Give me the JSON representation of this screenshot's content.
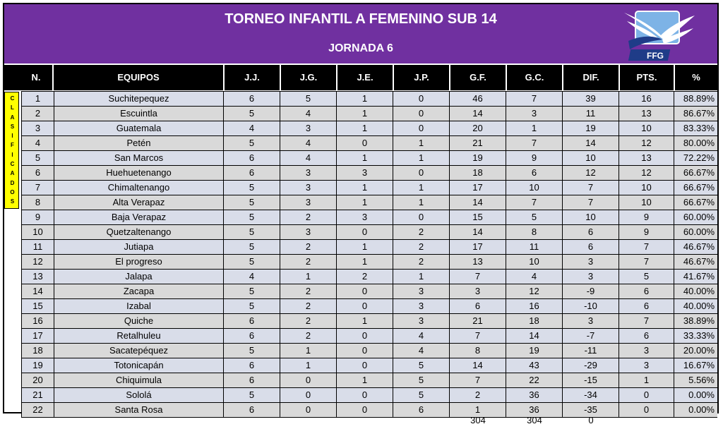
{
  "header": {
    "title": "TORNEO INFANTIL A FEMENINO SUB 14",
    "subtitle": "JORNADA 6",
    "logo_text": "FFG"
  },
  "columns": [
    "N.",
    "EQUIPOS",
    "J.J.",
    "J.G.",
    "J.E.",
    "J.P.",
    "G.F.",
    "G.C.",
    "DIF.",
    "PTS.",
    "%"
  ],
  "side_label": "CLASIFICADOS",
  "rows": [
    {
      "n": "1",
      "team": "Suchitepequez",
      "jj": "6",
      "jg": "5",
      "je": "1",
      "jp": "0",
      "gf": "46",
      "gc": "7",
      "dif": "39",
      "pts": "16",
      "pct": "88.89%"
    },
    {
      "n": "2",
      "team": "Escuintla",
      "jj": "5",
      "jg": "4",
      "je": "1",
      "jp": "0",
      "gf": "14",
      "gc": "3",
      "dif": "11",
      "pts": "13",
      "pct": "86.67%"
    },
    {
      "n": "3",
      "team": "Guatemala",
      "jj": "4",
      "jg": "3",
      "je": "1",
      "jp": "0",
      "gf": "20",
      "gc": "1",
      "dif": "19",
      "pts": "10",
      "pct": "83.33%"
    },
    {
      "n": "4",
      "team": "Petén",
      "jj": "5",
      "jg": "4",
      "je": "0",
      "jp": "1",
      "gf": "21",
      "gc": "7",
      "dif": "14",
      "pts": "12",
      "pct": "80.00%"
    },
    {
      "n": "5",
      "team": "San Marcos",
      "jj": "6",
      "jg": "4",
      "je": "1",
      "jp": "1",
      "gf": "19",
      "gc": "9",
      "dif": "10",
      "pts": "13",
      "pct": "72.22%"
    },
    {
      "n": "6",
      "team": "Huehuetenango",
      "jj": "6",
      "jg": "3",
      "je": "3",
      "jp": "0",
      "gf": "18",
      "gc": "6",
      "dif": "12",
      "pts": "12",
      "pct": "66.67%"
    },
    {
      "n": "7",
      "team": "Chimaltenango",
      "jj": "5",
      "jg": "3",
      "je": "1",
      "jp": "1",
      "gf": "17",
      "gc": "10",
      "dif": "7",
      "pts": "10",
      "pct": "66.67%"
    },
    {
      "n": "8",
      "team": "Alta Verapaz",
      "jj": "5",
      "jg": "3",
      "je": "1",
      "jp": "1",
      "gf": "14",
      "gc": "7",
      "dif": "7",
      "pts": "10",
      "pct": "66.67%"
    },
    {
      "n": "9",
      "team": "Baja Verapaz",
      "jj": "5",
      "jg": "2",
      "je": "3",
      "jp": "0",
      "gf": "15",
      "gc": "5",
      "dif": "10",
      "pts": "9",
      "pct": "60.00%"
    },
    {
      "n": "10",
      "team": "Quetzaltenango",
      "jj": "5",
      "jg": "3",
      "je": "0",
      "jp": "2",
      "gf": "14",
      "gc": "8",
      "dif": "6",
      "pts": "9",
      "pct": "60.00%"
    },
    {
      "n": "11",
      "team": "Jutiapa",
      "jj": "5",
      "jg": "2",
      "je": "1",
      "jp": "2",
      "gf": "17",
      "gc": "11",
      "dif": "6",
      "pts": "7",
      "pct": "46.67%"
    },
    {
      "n": "12",
      "team": "El progreso",
      "jj": "5",
      "jg": "2",
      "je": "1",
      "jp": "2",
      "gf": "13",
      "gc": "10",
      "dif": "3",
      "pts": "7",
      "pct": "46.67%"
    },
    {
      "n": "13",
      "team": "Jalapa",
      "jj": "4",
      "jg": "1",
      "je": "2",
      "jp": "1",
      "gf": "7",
      "gc": "4",
      "dif": "3",
      "pts": "5",
      "pct": "41.67%"
    },
    {
      "n": "14",
      "team": "Zacapa",
      "jj": "5",
      "jg": "2",
      "je": "0",
      "jp": "3",
      "gf": "3",
      "gc": "12",
      "dif": "-9",
      "pts": "6",
      "pct": "40.00%"
    },
    {
      "n": "15",
      "team": "Izabal",
      "jj": "5",
      "jg": "2",
      "je": "0",
      "jp": "3",
      "gf": "6",
      "gc": "16",
      "dif": "-10",
      "pts": "6",
      "pct": "40.00%"
    },
    {
      "n": "16",
      "team": "Quiche",
      "jj": "6",
      "jg": "2",
      "je": "1",
      "jp": "3",
      "gf": "21",
      "gc": "18",
      "dif": "3",
      "pts": "7",
      "pct": "38.89%"
    },
    {
      "n": "17",
      "team": "Retalhuleu",
      "jj": "6",
      "jg": "2",
      "je": "0",
      "jp": "4",
      "gf": "7",
      "gc": "14",
      "dif": "-7",
      "pts": "6",
      "pct": "33.33%"
    },
    {
      "n": "18",
      "team": "Sacatepéquez",
      "jj": "5",
      "jg": "1",
      "je": "0",
      "jp": "4",
      "gf": "8",
      "gc": "19",
      "dif": "-11",
      "pts": "3",
      "pct": "20.00%"
    },
    {
      "n": "19",
      "team": "Totonicapán",
      "jj": "6",
      "jg": "1",
      "je": "0",
      "jp": "5",
      "gf": "14",
      "gc": "43",
      "dif": "-29",
      "pts": "3",
      "pct": "16.67%"
    },
    {
      "n": "20",
      "team": "Chiquimula",
      "jj": "6",
      "jg": "0",
      "je": "1",
      "jp": "5",
      "gf": "7",
      "gc": "22",
      "dif": "-15",
      "pts": "1",
      "pct": "5.56%"
    },
    {
      "n": "21",
      "team": "Sololá",
      "jj": "5",
      "jg": "0",
      "je": "0",
      "jp": "5",
      "gf": "2",
      "gc": "36",
      "dif": "-34",
      "pts": "0",
      "pct": "0.00%"
    },
    {
      "n": "22",
      "team": "Santa Rosa",
      "jj": "6",
      "jg": "0",
      "je": "0",
      "jp": "6",
      "gf": "1",
      "gc": "36",
      "dif": "-35",
      "pts": "0",
      "pct": "0.00%"
    }
  ],
  "totals": {
    "gf": "304",
    "gc": "304",
    "dif": "0"
  },
  "colors": {
    "banner": "#7030a0",
    "header": "#000000",
    "row_a": "#d9dde9",
    "row_b": "#d9d9d9",
    "qualified": "#ffff00",
    "logo_blue": "#1f3c88"
  }
}
